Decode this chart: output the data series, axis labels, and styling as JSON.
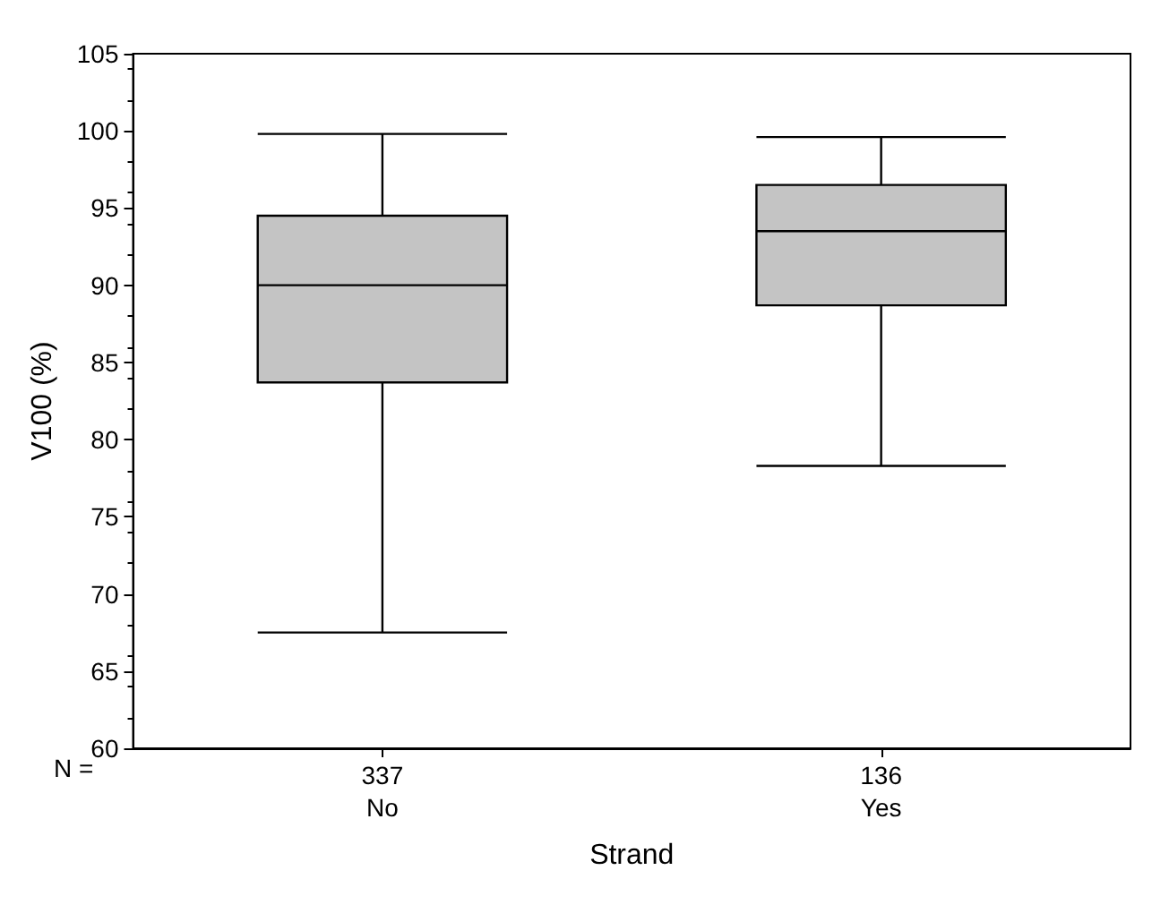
{
  "chart_data": {
    "type": "box",
    "xlabel": "Strand",
    "ylabel": "V100 (%)",
    "categories": [
      "No",
      "Yes"
    ],
    "boxes": [
      {
        "low": 67.5,
        "q1": 83.7,
        "median": 90,
        "q3": 94.5,
        "high": 99.8
      },
      {
        "low": 78.3,
        "q1": 88.7,
        "median": 93.5,
        "q3": 96.5,
        "high": 99.6
      }
    ],
    "color": "#c4c4c4",
    "ylim": [
      60,
      105
    ],
    "yticks": [
      60,
      65,
      70,
      75,
      80,
      85,
      90,
      95,
      100,
      105
    ],
    "grid": false,
    "annotations": [
      "N =",
      "337",
      "136"
    ]
  }
}
